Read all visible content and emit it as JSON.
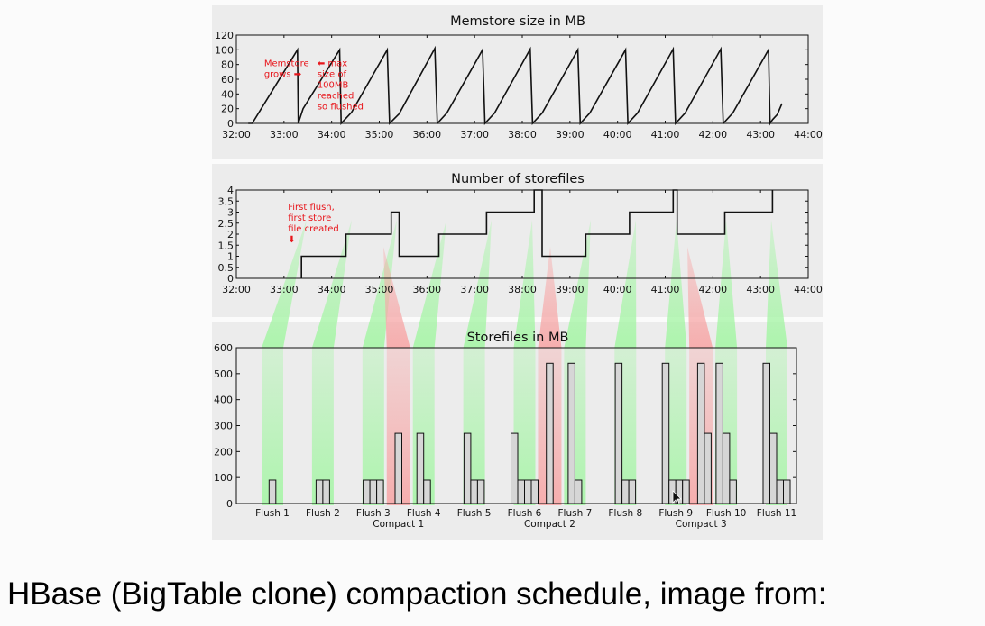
{
  "caption": "HBase (BigTable clone) compaction schedule, image from:",
  "colors": {
    "line": "#111111",
    "annotation": "#e8151b",
    "flush_band": "#a6f5a6",
    "compact_band": "#f7a7a7",
    "bar_fill": "#d6d6d6",
    "panel_bg": "#ececec"
  },
  "chart_data": [
    {
      "type": "line",
      "title": "Memstore size in MB",
      "xlabel": "",
      "ylabel": "",
      "x_ticks": [
        "32:00",
        "33:00",
        "34:00",
        "35:00",
        "36:00",
        "37:00",
        "38:00",
        "39:00",
        "40:00",
        "41:00",
        "42:00",
        "43:00",
        "44:00"
      ],
      "y_ticks": [
        "0",
        "20",
        "40",
        "60",
        "80",
        "100",
        "120"
      ],
      "xlim": [
        "32:00",
        "44:00"
      ],
      "ylim": [
        0,
        120
      ],
      "series": [
        {
          "points": [
            [
              "32:15",
              0
            ],
            [
              "32:20",
              0
            ],
            [
              "33:17",
              100
            ],
            [
              "33:18",
              0
            ],
            [
              "33:24",
              20
            ],
            [
              "34:10",
              100
            ],
            [
              "34:12",
              0
            ],
            [
              "34:25",
              15
            ],
            [
              "35:10",
              100
            ],
            [
              "35:13",
              0
            ],
            [
              "35:25",
              13
            ],
            [
              "36:10",
              102
            ],
            [
              "36:13",
              0
            ],
            [
              "36:25",
              14
            ],
            [
              "37:10",
              100
            ],
            [
              "37:13",
              0
            ],
            [
              "37:25",
              14
            ],
            [
              "38:10",
              101
            ],
            [
              "38:13",
              0
            ],
            [
              "38:25",
              14
            ],
            [
              "39:10",
              100
            ],
            [
              "39:13",
              0
            ],
            [
              "39:25",
              14
            ],
            [
              "40:10",
              100
            ],
            [
              "40:13",
              0
            ],
            [
              "40:25",
              14
            ],
            [
              "41:10",
              101
            ],
            [
              "41:13",
              0
            ],
            [
              "41:25",
              14
            ],
            [
              "42:10",
              101
            ],
            [
              "42:13",
              0
            ],
            [
              "42:25",
              14
            ],
            [
              "43:10",
              100
            ],
            [
              "43:12",
              0
            ],
            [
              "43:15",
              5
            ],
            [
              "43:21",
              12
            ],
            [
              "43:27",
              27
            ]
          ]
        }
      ],
      "annotations": [
        {
          "lines": [
            "Memstore",
            "grows ➡"
          ],
          "at_x": "32:35",
          "at_y": 78
        },
        {
          "lines": [
            "⬅ max",
            "size of",
            "100MB",
            "reached",
            "so flushed"
          ],
          "at_x": "33:42",
          "at_y": 78
        }
      ]
    },
    {
      "type": "line",
      "title": "Number of storefiles",
      "xlabel": "",
      "ylabel": "",
      "x_ticks": [
        "32:00",
        "33:00",
        "34:00",
        "35:00",
        "36:00",
        "37:00",
        "38:00",
        "39:00",
        "40:00",
        "41:00",
        "42:00",
        "43:00",
        "44:00"
      ],
      "y_ticks": [
        "0",
        "0.5",
        "1",
        "1.5",
        "2",
        "2.5",
        "3",
        "3.5",
        "4"
      ],
      "xlim": [
        "32:00",
        "44:00"
      ],
      "ylim": [
        0,
        4
      ],
      "series": [
        {
          "steps": [
            [
              "33:22",
              1
            ],
            [
              "34:18",
              2
            ],
            [
              "35:15",
              3
            ],
            [
              "35:25",
              1
            ],
            [
              "36:15",
              2
            ],
            [
              "37:15",
              3
            ],
            [
              "38:15",
              4
            ],
            [
              "38:25",
              1
            ],
            [
              "39:20",
              2
            ],
            [
              "40:15",
              3
            ],
            [
              "41:10",
              4
            ],
            [
              "41:15",
              2
            ],
            [
              "42:15",
              3
            ],
            [
              "43:15",
              4
            ]
          ],
          "start": [
            "33:22",
            0
          ]
        }
      ],
      "annotations": [
        {
          "lines": [
            "First flush,",
            "first store",
            "file created",
            "⬇"
          ],
          "at_x": "33:05",
          "at_y": 3.1
        }
      ]
    },
    {
      "type": "bar",
      "title": "Storefiles in MB",
      "xlabel": "",
      "ylabel": "",
      "y_ticks": [
        "0",
        "100",
        "200",
        "300",
        "400",
        "500",
        "600"
      ],
      "ylim": [
        0,
        600
      ],
      "groups": [
        {
          "label": "Flush 1",
          "values": [
            90
          ]
        },
        {
          "label": "Flush 2",
          "values": [
            90,
            90
          ]
        },
        {
          "label": "Flush 3",
          "values": [
            90,
            90,
            90
          ]
        },
        {
          "label": "Compact 1",
          "values": [
            270
          ]
        },
        {
          "label": "Flush 4",
          "values": [
            270,
            90
          ]
        },
        {
          "label": "Flush 5",
          "values": [
            270,
            90,
            90
          ]
        },
        {
          "label": "Flush 6",
          "values": [
            270,
            90,
            90,
            90
          ]
        },
        {
          "label": "Compact 2",
          "values": [
            540
          ]
        },
        {
          "label": "Flush 7",
          "values": [
            540,
            90
          ]
        },
        {
          "label": "Flush 8",
          "values": [
            540,
            90,
            90
          ]
        },
        {
          "label": "Flush 9",
          "values": [
            540,
            90,
            90,
            90
          ]
        },
        {
          "label": "Compact 3",
          "values": [
            540,
            270
          ]
        },
        {
          "label": "Flush 10",
          "values": [
            540,
            270,
            90
          ]
        },
        {
          "label": "Flush 11",
          "values": [
            540,
            270,
            90,
            90
          ]
        }
      ],
      "band_colors": [
        "green",
        "green",
        "green",
        "red",
        "green",
        "green",
        "green",
        "red",
        "green",
        "green",
        "green",
        "red",
        "green",
        "green"
      ]
    }
  ]
}
